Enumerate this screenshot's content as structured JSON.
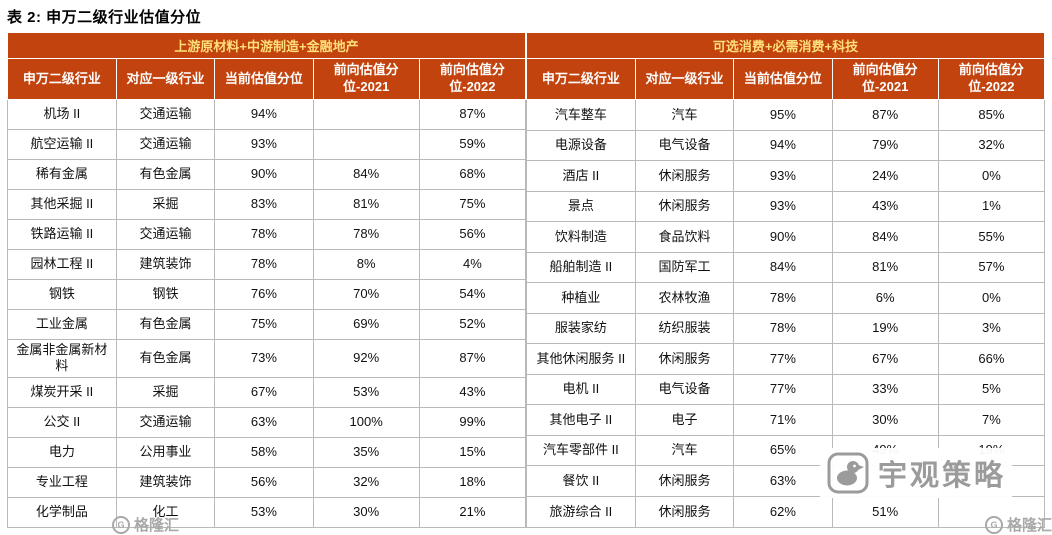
{
  "title": "表 2:  申万二级行业估值分位",
  "accent_color": "#C3430E",
  "group_header_text_color": "#FFDF7A",
  "watermark": {
    "brand": "宇观策略",
    "site": "格隆汇"
  },
  "chart_data": [
    {
      "type": "table",
      "group_header": "上游原材料+中游制造+金融地产",
      "columns": [
        "申万二级行业",
        "对应一级行业",
        "当前估值分位",
        "前向估值分位-2021",
        "前向估值分位-2022"
      ],
      "rows": [
        [
          "机场 II",
          "交通运输",
          "94%",
          "",
          "87%"
        ],
        [
          "航空运输 II",
          "交通运输",
          "93%",
          "",
          "59%"
        ],
        [
          "稀有金属",
          "有色金属",
          "90%",
          "84%",
          "68%"
        ],
        [
          "其他采掘 II",
          "采掘",
          "83%",
          "81%",
          "75%"
        ],
        [
          "铁路运输 II",
          "交通运输",
          "78%",
          "78%",
          "56%"
        ],
        [
          "园林工程 II",
          "建筑装饰",
          "78%",
          "8%",
          "4%"
        ],
        [
          "钢铁",
          "钢铁",
          "76%",
          "70%",
          "54%"
        ],
        [
          "工业金属",
          "有色金属",
          "75%",
          "69%",
          "52%"
        ],
        [
          "金属非金属新材料",
          "有色金属",
          "73%",
          "92%",
          "87%"
        ],
        [
          "煤炭开采 II",
          "采掘",
          "67%",
          "53%",
          "43%"
        ],
        [
          "公交 II",
          "交通运输",
          "63%",
          "100%",
          "99%"
        ],
        [
          "电力",
          "公用事业",
          "58%",
          "35%",
          "15%"
        ],
        [
          "专业工程",
          "建筑装饰",
          "56%",
          "32%",
          "18%"
        ],
        [
          "化学制品",
          "化工",
          "53%",
          "30%",
          "21%"
        ]
      ]
    },
    {
      "type": "table",
      "group_header": "可选消费+必需消费+科技",
      "columns": [
        "申万二级行业",
        "对应一级行业",
        "当前估值分位",
        "前向估值分位-2021",
        "前向估值分位-2022"
      ],
      "rows": [
        [
          "汽车整车",
          "汽车",
          "95%",
          "87%",
          "85%"
        ],
        [
          "电源设备",
          "电气设备",
          "94%",
          "79%",
          "32%"
        ],
        [
          "酒店 II",
          "休闲服务",
          "93%",
          "24%",
          "0%"
        ],
        [
          "景点",
          "休闲服务",
          "93%",
          "43%",
          "1%"
        ],
        [
          "饮料制造",
          "食品饮料",
          "90%",
          "84%",
          "55%"
        ],
        [
          "船舶制造 II",
          "国防军工",
          "84%",
          "81%",
          "57%"
        ],
        [
          "种植业",
          "农林牧渔",
          "78%",
          "6%",
          "0%"
        ],
        [
          "服装家纺",
          "纺织服装",
          "78%",
          "19%",
          "3%"
        ],
        [
          "其他休闲服务 II",
          "休闲服务",
          "77%",
          "67%",
          "66%"
        ],
        [
          "电机 II",
          "电气设备",
          "77%",
          "33%",
          "5%"
        ],
        [
          "其他电子 II",
          "电子",
          "71%",
          "30%",
          "7%"
        ],
        [
          "汽车零部件 II",
          "汽车",
          "65%",
          "49%",
          "19%"
        ],
        [
          "餐饮 II",
          "休闲服务",
          "63%",
          "",
          ""
        ],
        [
          "旅游综合 II",
          "休闲服务",
          "62%",
          "51%",
          ""
        ]
      ]
    }
  ]
}
